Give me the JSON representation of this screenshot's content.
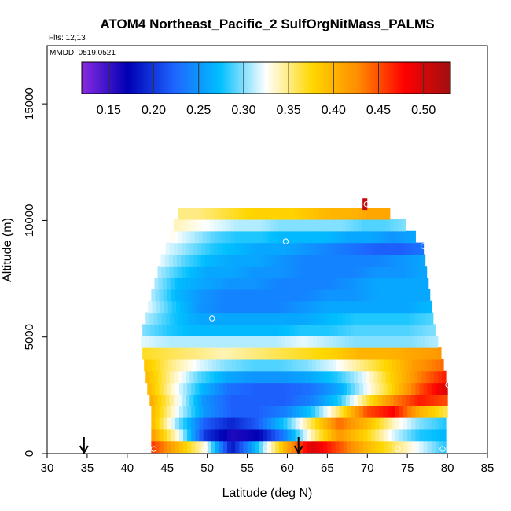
{
  "chart_data": {
    "type": "heatmap",
    "title": "ATOM4 Northeast_Pacific_2 SulfOrgNitMass_PALMS",
    "flights_label": "Flts: 12,13",
    "dates_label": "MMDD: 0519,0521",
    "xlabel": "Latitude (deg N)",
    "ylabel": "Altitude (m)",
    "xlim": [
      30,
      85
    ],
    "ylim": [
      0,
      17500
    ],
    "x_ticks": [
      30,
      35,
      40,
      45,
      50,
      55,
      60,
      65,
      70,
      75,
      80,
      85
    ],
    "y_ticks": [
      0,
      5000,
      10000,
      15000
    ],
    "colorbar": {
      "range": [
        0.12,
        0.53
      ],
      "tick_values": [
        0.15,
        0.2,
        0.25,
        0.3,
        0.35,
        0.4,
        0.45,
        0.5
      ],
      "tick_labels": [
        "0.15",
        "0.20",
        "0.25",
        "0.30",
        "0.35",
        "0.40",
        "0.45",
        "0.50"
      ],
      "colors": [
        "#8a2be2",
        "#0000b4",
        "#1e64ff",
        "#00bfff",
        "#ffffff",
        "#ffd700",
        "#ff8c00",
        "#ff0000",
        "#a01010"
      ]
    },
    "layers": [
      {
        "alt": 300,
        "lat_min": 43.0,
        "lat_max": 79.8,
        "values": [
          0.46,
          0.4,
          0.33,
          0.18,
          0.28,
          0.4,
          0.5,
          0.45,
          0.4,
          0.36,
          0.32,
          0.28
        ]
      },
      {
        "alt": 800,
        "lat_min": 43.0,
        "lat_max": 79.8,
        "values": [
          0.42,
          0.33,
          0.2,
          0.16,
          0.17,
          0.24,
          0.34,
          0.42,
          0.38,
          0.32,
          0.28,
          0.27
        ]
      },
      {
        "alt": 1300,
        "lat_min": 43.0,
        "lat_max": 79.8,
        "values": [
          0.4,
          0.3,
          0.22,
          0.19,
          0.22,
          0.28,
          0.36,
          0.44,
          0.4,
          0.34,
          0.3,
          0.28
        ]
      },
      {
        "alt": 1800,
        "lat_min": 43.0,
        "lat_max": 80.0,
        "values": [
          0.4,
          0.32,
          0.25,
          0.22,
          0.22,
          0.24,
          0.28,
          0.36,
          0.45,
          0.48,
          0.4,
          0.36
        ]
      },
      {
        "alt": 2300,
        "lat_min": 42.8,
        "lat_max": 80.0,
        "values": [
          0.41,
          0.33,
          0.25,
          0.22,
          0.22,
          0.22,
          0.24,
          0.28,
          0.36,
          0.43,
          0.47,
          0.45
        ]
      },
      {
        "alt": 2800,
        "lat_min": 42.5,
        "lat_max": 80.0,
        "values": [
          0.4,
          0.33,
          0.27,
          0.23,
          0.22,
          0.22,
          0.23,
          0.26,
          0.32,
          0.38,
          0.45,
          0.5
        ]
      },
      {
        "alt": 3300,
        "lat_min": 42.3,
        "lat_max": 79.8,
        "values": [
          0.4,
          0.34,
          0.29,
          0.26,
          0.25,
          0.25,
          0.26,
          0.28,
          0.32,
          0.38,
          0.43,
          0.47
        ]
      },
      {
        "alt": 3800,
        "lat_min": 42.1,
        "lat_max": 79.5,
        "values": [
          0.39,
          0.35,
          0.32,
          0.3,
          0.29,
          0.29,
          0.3,
          0.32,
          0.35,
          0.38,
          0.42,
          0.44
        ]
      },
      {
        "alt": 4300,
        "lat_min": 41.9,
        "lat_max": 79.2,
        "values": [
          0.37,
          0.36,
          0.35,
          0.34,
          0.35,
          0.36,
          0.37,
          0.38,
          0.4,
          0.4,
          0.41,
          0.42
        ]
      },
      {
        "alt": 4800,
        "lat_min": 41.7,
        "lat_max": 78.8,
        "values": [
          0.32,
          0.31,
          0.31,
          0.31,
          0.31,
          0.31,
          0.32,
          0.31,
          0.3,
          0.3,
          0.3,
          0.31
        ]
      },
      {
        "alt": 5300,
        "lat_min": 41.9,
        "lat_max": 78.5,
        "values": [
          0.3,
          0.28,
          0.27,
          0.27,
          0.27,
          0.27,
          0.28,
          0.28,
          0.29,
          0.29,
          0.29,
          0.3
        ]
      },
      {
        "alt": 5800,
        "lat_min": 42.3,
        "lat_max": 78.2,
        "values": [
          0.31,
          0.28,
          0.26,
          0.26,
          0.26,
          0.26,
          0.26,
          0.27,
          0.28,
          0.28,
          0.28,
          0.29
        ]
      },
      {
        "alt": 6300,
        "lat_min": 42.6,
        "lat_max": 78.0,
        "values": [
          0.32,
          0.28,
          0.25,
          0.24,
          0.24,
          0.24,
          0.25,
          0.26,
          0.26,
          0.26,
          0.26,
          0.27
        ]
      },
      {
        "alt": 6800,
        "lat_min": 43.0,
        "lat_max": 77.8,
        "values": [
          0.31,
          0.27,
          0.25,
          0.24,
          0.24,
          0.24,
          0.24,
          0.25,
          0.25,
          0.26,
          0.26,
          0.26
        ]
      },
      {
        "alt": 7300,
        "lat_min": 43.4,
        "lat_max": 77.6,
        "values": [
          0.31,
          0.27,
          0.26,
          0.25,
          0.25,
          0.24,
          0.24,
          0.24,
          0.25,
          0.26,
          0.26,
          0.26
        ]
      },
      {
        "alt": 7800,
        "lat_min": 43.8,
        "lat_max": 77.4,
        "values": [
          0.31,
          0.28,
          0.26,
          0.26,
          0.25,
          0.25,
          0.24,
          0.24,
          0.24,
          0.25,
          0.25,
          0.26
        ]
      },
      {
        "alt": 8300,
        "lat_min": 44.2,
        "lat_max": 77.2,
        "values": [
          0.32,
          0.29,
          0.27,
          0.26,
          0.26,
          0.25,
          0.24,
          0.24,
          0.24,
          0.24,
          0.25,
          0.26
        ]
      },
      {
        "alt": 8800,
        "lat_min": 44.8,
        "lat_max": 77.0,
        "values": [
          0.32,
          0.3,
          0.28,
          0.27,
          0.26,
          0.26,
          0.25,
          0.24,
          0.23,
          0.22,
          0.22,
          0.23
        ]
      },
      {
        "alt": 9300,
        "lat_min": 45.4,
        "lat_max": 76.0,
        "values": [
          0.33,
          0.31,
          0.29,
          0.28,
          0.28,
          0.27,
          0.27,
          0.27,
          0.26,
          0.26,
          0.25,
          0.26
        ]
      },
      {
        "alt": 9800,
        "lat_min": 45.8,
        "lat_max": 74.8,
        "values": [
          0.34,
          0.33,
          0.32,
          0.31,
          0.31,
          0.3,
          0.3,
          0.3,
          0.3,
          0.29,
          0.29,
          0.3
        ]
      },
      {
        "alt": 10300,
        "lat_min": 46.4,
        "lat_max": 72.8,
        "values": [
          0.35,
          0.35,
          0.36,
          0.37,
          0.38,
          0.38,
          0.38,
          0.39,
          0.4,
          0.4,
          0.41,
          0.41
        ]
      }
    ],
    "extra_cells": [
      {
        "lat": 69.7,
        "alt": 10700,
        "value": 0.51
      }
    ],
    "points": [
      {
        "lat": 43.3,
        "alt": 200
      },
      {
        "lat": 49.7,
        "alt": 200
      },
      {
        "lat": 57.3,
        "alt": 200
      },
      {
        "lat": 73.8,
        "alt": 200
      },
      {
        "lat": 79.4,
        "alt": 200
      },
      {
        "lat": 50.6,
        "alt": 5800
      },
      {
        "lat": 59.8,
        "alt": 9100
      },
      {
        "lat": 77.0,
        "alt": 8900
      },
      {
        "lat": 69.9,
        "alt": 10700
      },
      {
        "lat": 80.1,
        "alt": 2950
      }
    ],
    "arrows_lat": [
      34.6,
      61.4
    ]
  }
}
